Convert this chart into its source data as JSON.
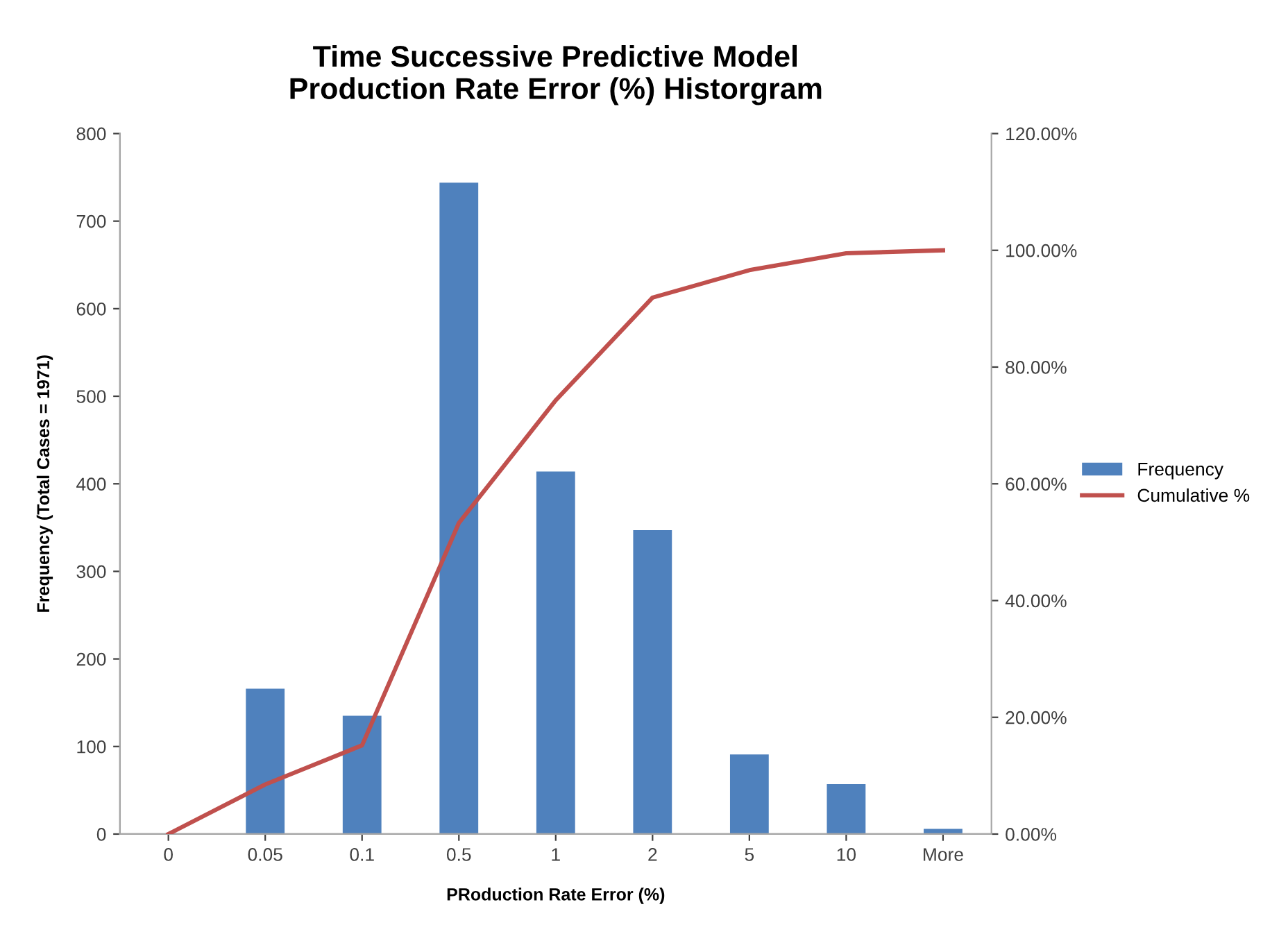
{
  "chart_data": {
    "type": "bar",
    "title": "Time Successive Predictive Model\nProduction Rate Error (%) Historgram",
    "xlabel": "PRoduction Rate Error (%)",
    "ylabel": "Frequency (Total Cases = 1971)",
    "categories": [
      "0",
      "0.05",
      "0.1",
      "0.5",
      "1",
      "2",
      "5",
      "10",
      "More"
    ],
    "series": [
      {
        "name": "Frequency",
        "color": "#4f81bd",
        "values": [
          0,
          166,
          135,
          744,
          414,
          347,
          91,
          57,
          6
        ]
      },
      {
        "name": "Cumulative %",
        "type": "line",
        "axis": "y2",
        "color": "#c0504d",
        "values": [
          0,
          8.5,
          15.2,
          53.3,
          74.3,
          91.9,
          96.6,
          99.5,
          100
        ]
      }
    ],
    "ylim": [
      0,
      800
    ],
    "yticks": [
      0,
      100,
      200,
      300,
      400,
      500,
      600,
      700,
      800
    ],
    "y2lim": [
      0,
      120
    ],
    "y2ticks": [
      {
        "value": 0,
        "label": "0.00%"
      },
      {
        "value": 20,
        "label": "20.00%"
      },
      {
        "value": 40,
        "label": "40.00%"
      },
      {
        "value": 60,
        "label": "60.00%"
      },
      {
        "value": 80,
        "label": "80.00%"
      },
      {
        "value": 100,
        "label": "100.00%"
      },
      {
        "value": 120,
        "label": "120.00%"
      }
    ],
    "grid": false,
    "legend": "right",
    "marker": "none"
  }
}
